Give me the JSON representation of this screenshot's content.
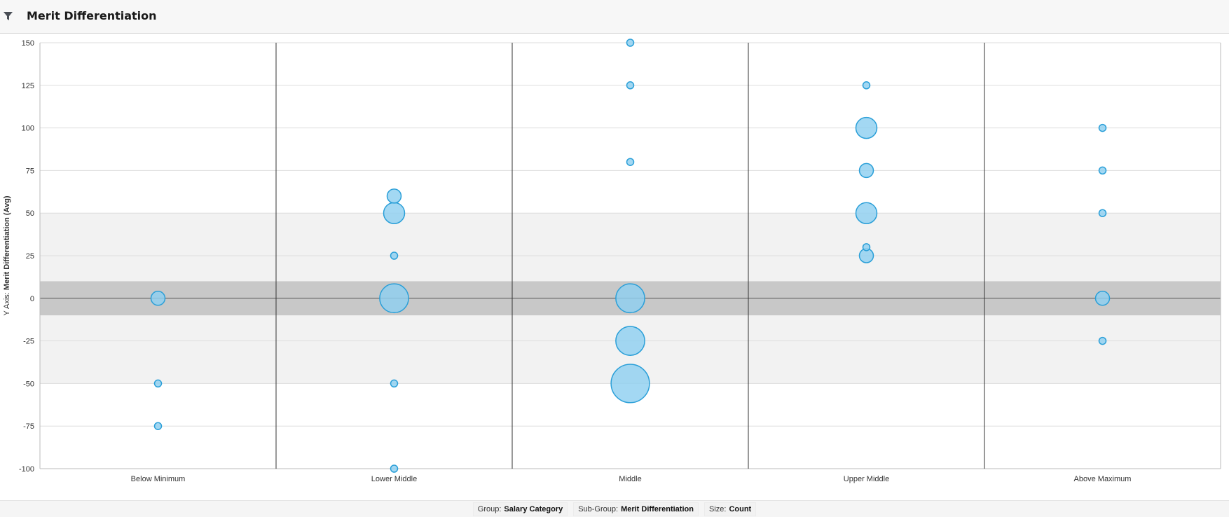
{
  "header": {
    "title": "Merit Differentiation",
    "filter_icon": "filter-icon"
  },
  "colors": {
    "bubble_fill": "#8fd0f0",
    "bubble_stroke": "#2a9fd8",
    "band_light": "#f2f2f2",
    "band_dark": "#c8c8c8",
    "grid": "#dddddd",
    "divider": "#333333"
  },
  "chart_data": {
    "type": "scatter",
    "title": "Merit Differentiation",
    "ylabel_prefix": "Y Axis:",
    "ylabel": "Merit Differentiation (Avg)",
    "ylim": [
      -100,
      150
    ],
    "yticks": [
      150,
      125,
      100,
      75,
      50,
      25,
      0,
      -25,
      -50,
      -75,
      -100
    ],
    "grid": true,
    "bands": [
      {
        "from": -50,
        "to": 50,
        "shade": "light"
      },
      {
        "from": -10,
        "to": 10,
        "shade": "dark"
      }
    ],
    "categories": [
      "Below Minimum",
      "Lower Middle",
      "Middle",
      "Upper Middle",
      "Above Maximum"
    ],
    "points": [
      {
        "category": "Below Minimum",
        "y": 0,
        "size": 4
      },
      {
        "category": "Below Minimum",
        "y": -50,
        "size": 1
      },
      {
        "category": "Below Minimum",
        "y": -75,
        "size": 1
      },
      {
        "category": "Lower Middle",
        "y": 60,
        "size": 4
      },
      {
        "category": "Lower Middle",
        "y": 50,
        "size": 9
      },
      {
        "category": "Lower Middle",
        "y": 25,
        "size": 1
      },
      {
        "category": "Lower Middle",
        "y": 0,
        "size": 17
      },
      {
        "category": "Lower Middle",
        "y": -50,
        "size": 1
      },
      {
        "category": "Lower Middle",
        "y": -100,
        "size": 1
      },
      {
        "category": "Middle",
        "y": 150,
        "size": 1
      },
      {
        "category": "Middle",
        "y": 125,
        "size": 1
      },
      {
        "category": "Middle",
        "y": 80,
        "size": 1
      },
      {
        "category": "Middle",
        "y": 0,
        "size": 17
      },
      {
        "category": "Middle",
        "y": -25,
        "size": 17
      },
      {
        "category": "Middle",
        "y": -50,
        "size": 30
      },
      {
        "category": "Upper Middle",
        "y": 125,
        "size": 1
      },
      {
        "category": "Upper Middle",
        "y": 100,
        "size": 9
      },
      {
        "category": "Upper Middle",
        "y": 75,
        "size": 4
      },
      {
        "category": "Upper Middle",
        "y": 50,
        "size": 9
      },
      {
        "category": "Upper Middle",
        "y": 30,
        "size": 1
      },
      {
        "category": "Upper Middle",
        "y": 25,
        "size": 4
      },
      {
        "category": "Above Maximum",
        "y": 100,
        "size": 1
      },
      {
        "category": "Above Maximum",
        "y": 75,
        "size": 1
      },
      {
        "category": "Above Maximum",
        "y": 50,
        "size": 1
      },
      {
        "category": "Above Maximum",
        "y": 0,
        "size": 4
      },
      {
        "category": "Above Maximum",
        "y": -25,
        "size": 1
      }
    ]
  },
  "footer": {
    "group_label": "Group:",
    "group_value": "Salary Category",
    "subgroup_label": "Sub-Group:",
    "subgroup_value": "Merit Differentiation",
    "size_label": "Size:",
    "size_value": "Count"
  }
}
